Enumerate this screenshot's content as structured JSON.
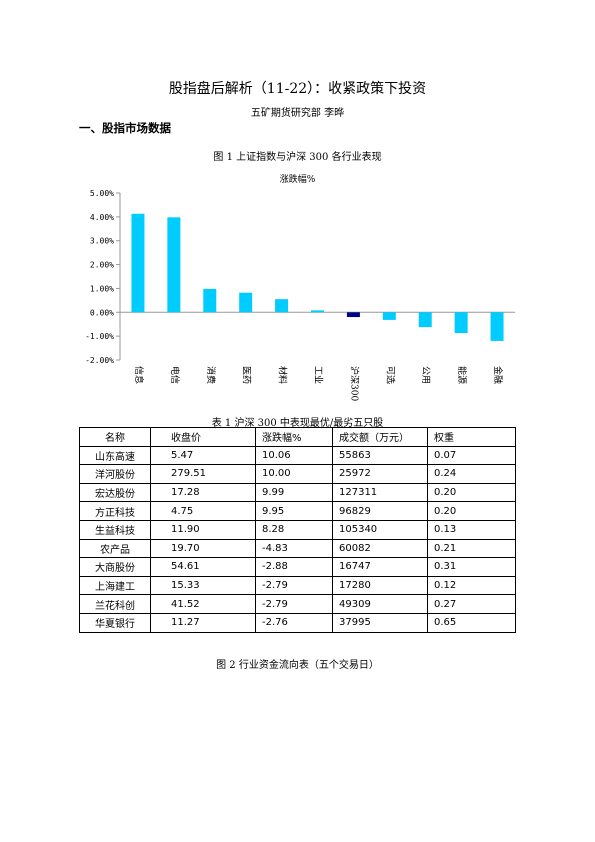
{
  "document": {
    "title": "股指盘后解析（11-22）：收紧政策下投资",
    "author_line": "五矿期货研究部    李晔",
    "section_heading": "一、股指市场数据",
    "figure1_caption": "图 1    上证指数与沪深 300 各行业表现",
    "table1_caption": "表 1    沪深 300 中表现最优/最劣五只股",
    "figure2_caption": "图 2    行业资金流向表（五个交易日）"
  },
  "colors": {
    "bar": "#00ccff",
    "highlight_bar": "#00008b",
    "axis": "#999999"
  },
  "chart_data": {
    "type": "bar",
    "title": "涨跌幅%",
    "categories": [
      "信息",
      "电信",
      "消费",
      "医药",
      "材料",
      "工业",
      "沪深300",
      "可选",
      "公用",
      "能源",
      "金融"
    ],
    "values": [
      4.13,
      3.98,
      0.98,
      0.82,
      0.55,
      0.08,
      -0.2,
      -0.32,
      -0.62,
      -0.87,
      -1.2
    ],
    "highlight_category": "沪深300",
    "ylim": [
      -2.0,
      5.0
    ],
    "yticks": [
      5.0,
      4.0,
      3.0,
      2.0,
      1.0,
      0.0,
      -1.0,
      -2.0
    ],
    "ytick_labels": [
      "5.00%",
      "4.00%",
      "3.00%",
      "2.00%",
      "1.00%",
      "0.00%",
      "-1.00%",
      "-2.00%"
    ],
    "xlabel": "",
    "ylabel": "",
    "grid": false,
    "legend": "none"
  },
  "table": {
    "headers": [
      "名称",
      "收盘价",
      "涨跌幅%",
      "成交额（万元）",
      "权重"
    ],
    "rows": [
      [
        "山东高速",
        "5.47",
        "10.06",
        "55863",
        "0.07"
      ],
      [
        "洋河股份",
        "279.51",
        "10.00",
        "25972",
        "0.24"
      ],
      [
        "宏达股份",
        "17.28",
        "9.99",
        "127311",
        "0.20"
      ],
      [
        "方正科技",
        "4.75",
        "9.95",
        "96829",
        "0.20"
      ],
      [
        "生益科技",
        "11.90",
        "8.28",
        "105340",
        "0.13"
      ],
      [
        "农产品",
        "19.70",
        "-4.83",
        "60082",
        "0.21"
      ],
      [
        "大商股份",
        "54.61",
        "-2.88",
        "16747",
        "0.31"
      ],
      [
        "上海建工",
        "15.33",
        "-2.79",
        "17280",
        "0.12"
      ],
      [
        "兰花科创",
        "41.52",
        "-2.79",
        "49309",
        "0.27"
      ],
      [
        "华夏银行",
        "11.27",
        "-2.76",
        "37995",
        "0.65"
      ]
    ]
  }
}
